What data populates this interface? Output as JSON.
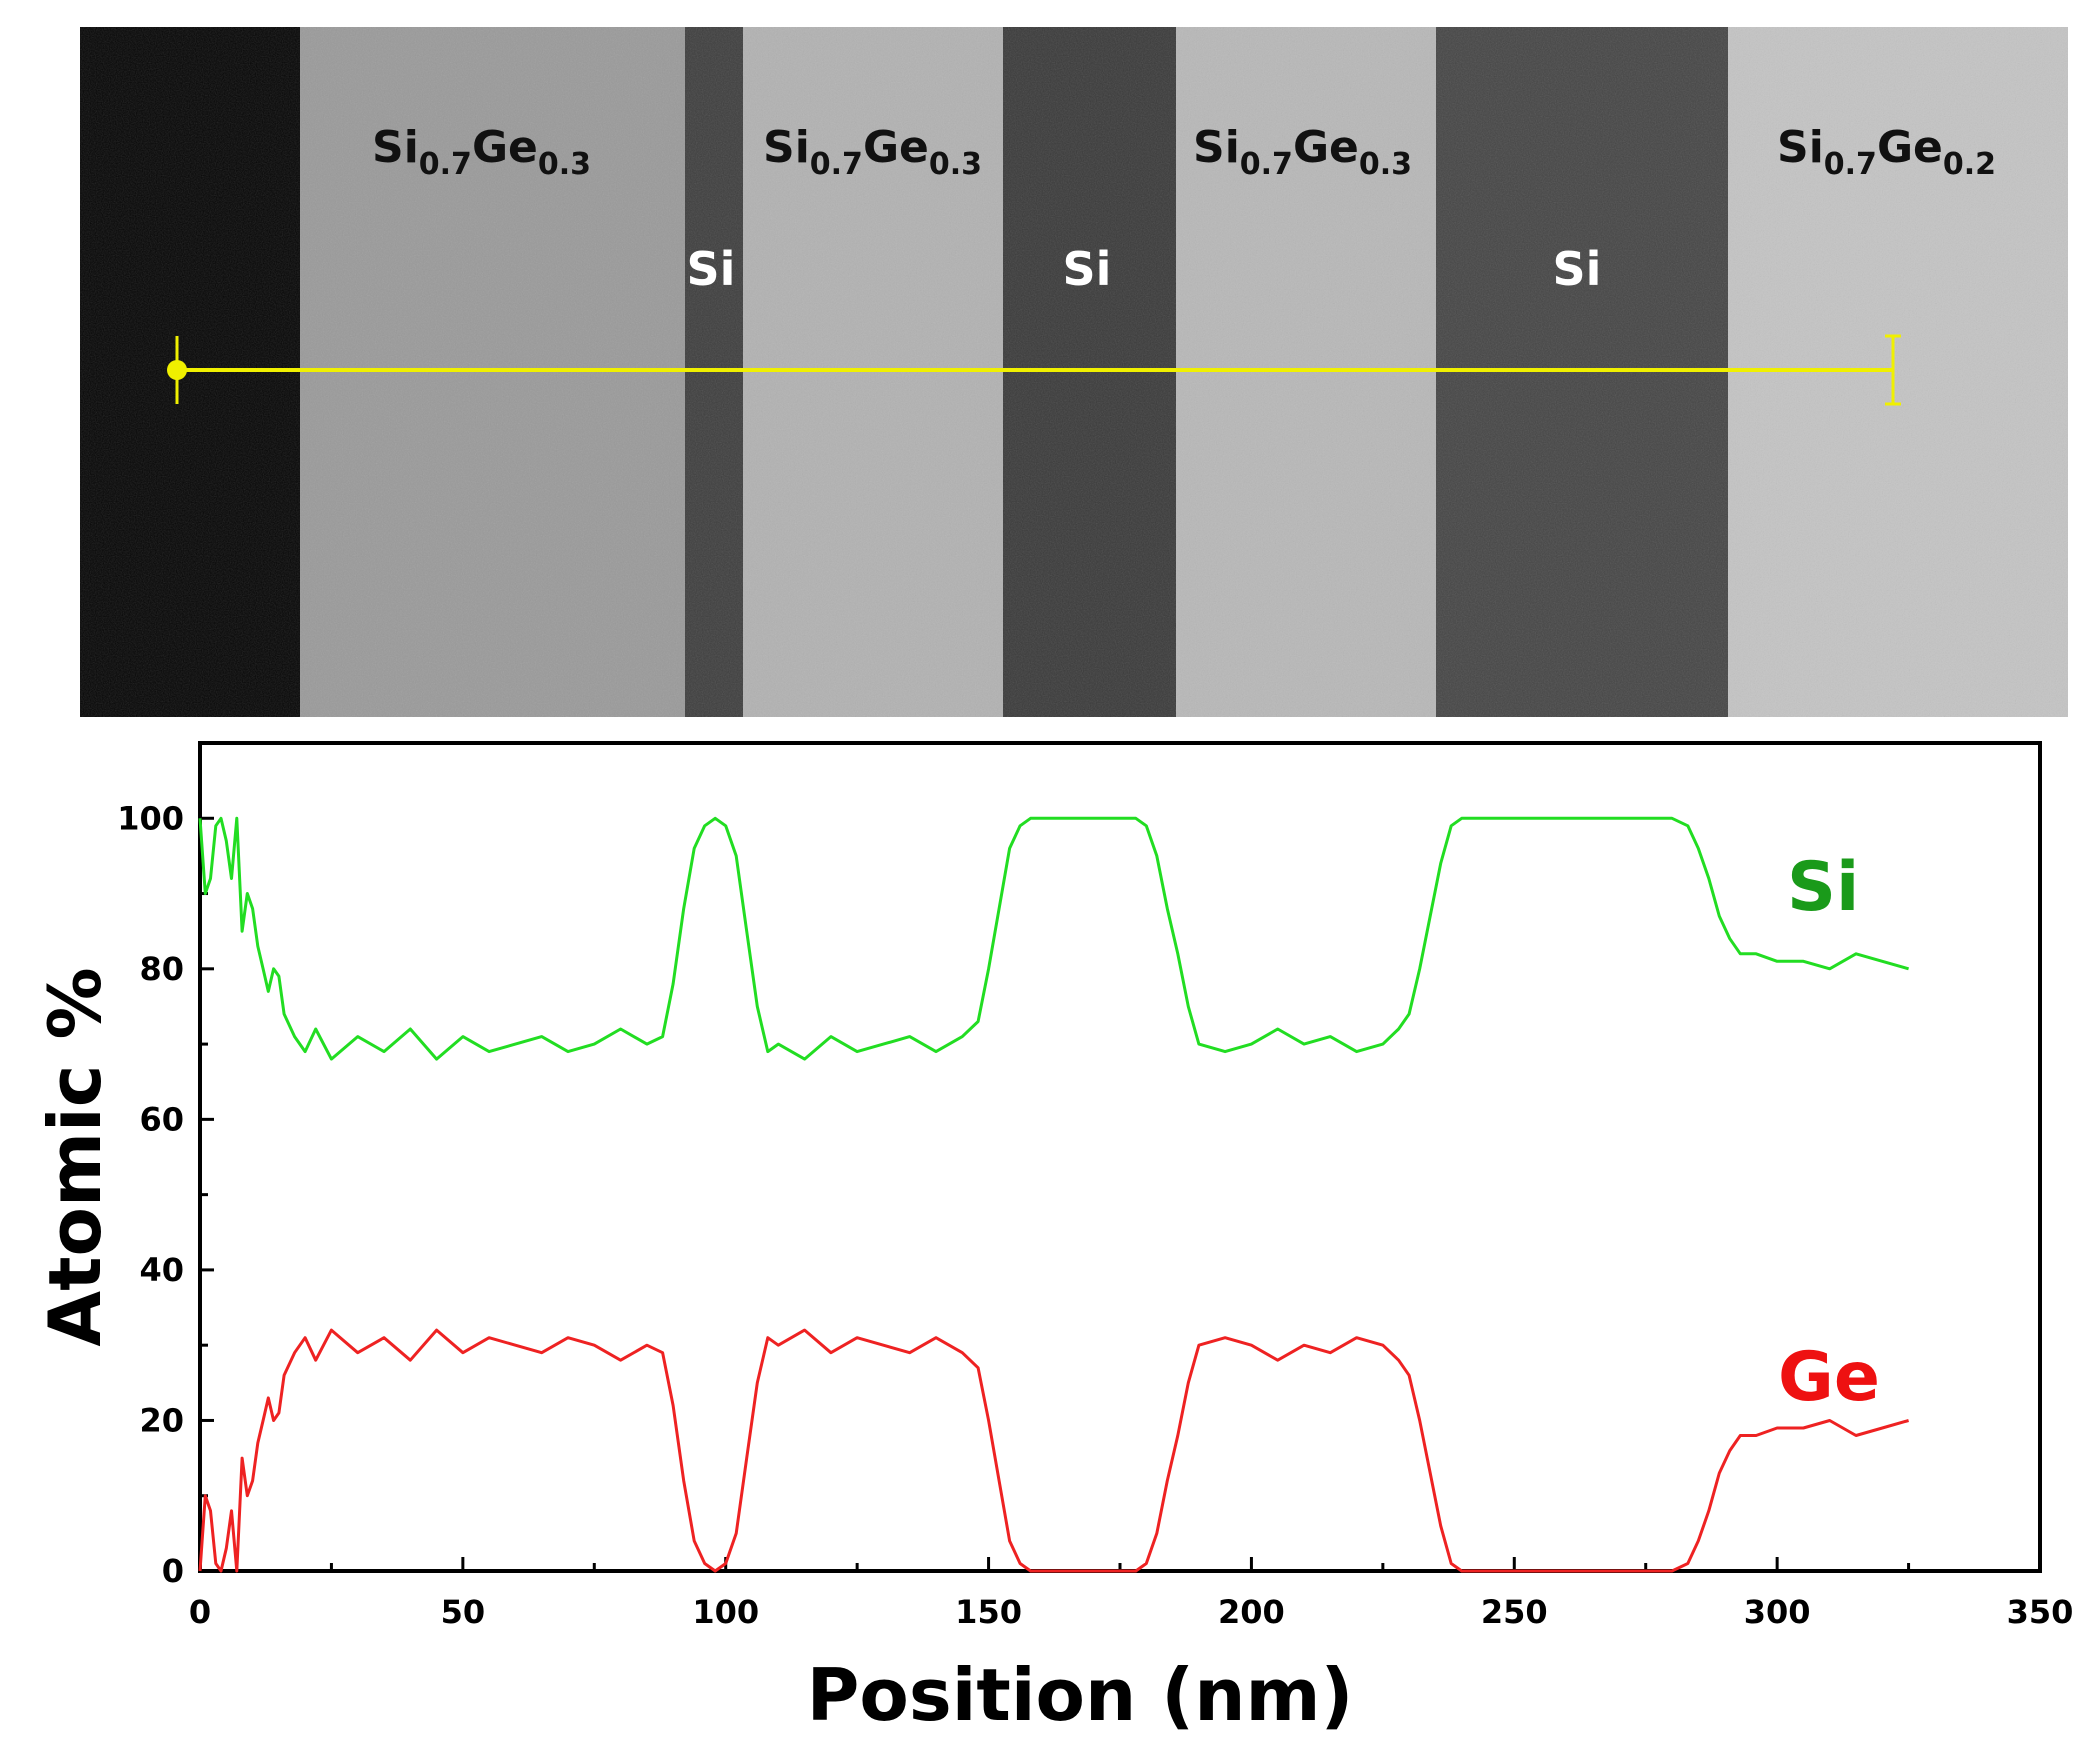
{
  "image_panel": {
    "layer_labels": [
      {
        "base": "Si",
        "sub1": "0.7",
        "mid": "Ge",
        "sub2": "0.3"
      },
      {
        "base": "Si",
        "sub1": "0.7",
        "mid": "Ge",
        "sub2": "0.3"
      },
      {
        "base": "Si",
        "sub1": "0.7",
        "mid": "Ge",
        "sub2": "0.3"
      },
      {
        "base": "Si",
        "sub1": "0.7",
        "mid": "Ge",
        "sub2": "0.2"
      }
    ],
    "si_labels": [
      "Si",
      "Si",
      "Si"
    ],
    "line_color": "#f0f000"
  },
  "chart_data": {
    "type": "line",
    "xlabel": "Position (nm)",
    "ylabel": "Atomic %",
    "xlim": [
      0,
      350
    ],
    "ylim": [
      0,
      110
    ],
    "xticks": [
      0,
      50,
      100,
      150,
      200,
      250,
      300,
      350
    ],
    "yticks": [
      0,
      20,
      40,
      60,
      80,
      100
    ],
    "grid": false,
    "series": [
      {
        "name": "Si",
        "color": "#22dd22",
        "label_color": "#1a9a1a",
        "x": [
          0,
          1,
          2,
          3,
          4,
          5,
          6,
          7,
          8,
          9,
          10,
          11,
          12,
          13,
          14,
          15,
          16,
          18,
          20,
          22,
          25,
          30,
          35,
          40,
          45,
          50,
          55,
          60,
          65,
          70,
          75,
          80,
          85,
          88,
          90,
          92,
          94,
          96,
          98,
          100,
          102,
          104,
          106,
          108,
          110,
          115,
          120,
          125,
          130,
          135,
          140,
          145,
          148,
          150,
          152,
          154,
          156,
          158,
          160,
          165,
          170,
          175,
          178,
          180,
          182,
          184,
          186,
          188,
          190,
          195,
          200,
          205,
          210,
          215,
          220,
          225,
          228,
          230,
          232,
          234,
          236,
          238,
          240,
          250,
          260,
          270,
          280,
          283,
          285,
          287,
          289,
          291,
          293,
          296,
          300,
          305,
          310,
          315,
          320,
          325
        ],
        "values": [
          100,
          90,
          92,
          99,
          100,
          97,
          92,
          100,
          85,
          90,
          88,
          83,
          80,
          77,
          80,
          79,
          74,
          71,
          69,
          72,
          68,
          71,
          69,
          72,
          68,
          71,
          69,
          70,
          71,
          69,
          70,
          72,
          70,
          71,
          78,
          88,
          96,
          99,
          100,
          99,
          95,
          85,
          75,
          69,
          70,
          68,
          71,
          69,
          70,
          71,
          69,
          71,
          73,
          80,
          88,
          96,
          99,
          100,
          100,
          100,
          100,
          100,
          100,
          99,
          95,
          88,
          82,
          75,
          70,
          69,
          70,
          72,
          70,
          71,
          69,
          70,
          72,
          74,
          80,
          87,
          94,
          99,
          100,
          100,
          100,
          100,
          100,
          99,
          96,
          92,
          87,
          84,
          82,
          82,
          81,
          81,
          80,
          82,
          81,
          80
        ]
      },
      {
        "name": "Ge",
        "color": "#ee2222",
        "label_color": "#ee1111",
        "x": [
          0,
          1,
          2,
          3,
          4,
          5,
          6,
          7,
          8,
          9,
          10,
          11,
          12,
          13,
          14,
          15,
          16,
          18,
          20,
          22,
          25,
          30,
          35,
          40,
          45,
          50,
          55,
          60,
          65,
          70,
          75,
          80,
          85,
          88,
          90,
          92,
          94,
          96,
          98,
          100,
          102,
          104,
          106,
          108,
          110,
          115,
          120,
          125,
          130,
          135,
          140,
          145,
          148,
          150,
          152,
          154,
          156,
          158,
          160,
          165,
          170,
          175,
          178,
          180,
          182,
          184,
          186,
          188,
          190,
          195,
          200,
          205,
          210,
          215,
          220,
          225,
          228,
          230,
          232,
          234,
          236,
          238,
          240,
          250,
          260,
          270,
          280,
          283,
          285,
          287,
          289,
          291,
          293,
          296,
          300,
          305,
          310,
          315,
          320,
          325
        ],
        "values": [
          0,
          10,
          8,
          1,
          0,
          3,
          8,
          0,
          15,
          10,
          12,
          17,
          20,
          23,
          20,
          21,
          26,
          29,
          31,
          28,
          32,
          29,
          31,
          28,
          32,
          29,
          31,
          30,
          29,
          31,
          30,
          28,
          30,
          29,
          22,
          12,
          4,
          1,
          0,
          1,
          5,
          15,
          25,
          31,
          30,
          32,
          29,
          31,
          30,
          29,
          31,
          29,
          27,
          20,
          12,
          4,
          1,
          0,
          0,
          0,
          0,
          0,
          0,
          1,
          5,
          12,
          18,
          25,
          30,
          31,
          30,
          28,
          30,
          29,
          31,
          30,
          28,
          26,
          20,
          13,
          6,
          1,
          0,
          0,
          0,
          0,
          0,
          1,
          4,
          8,
          13,
          16,
          18,
          18,
          19,
          19,
          20,
          18,
          19,
          20
        ]
      }
    ]
  }
}
